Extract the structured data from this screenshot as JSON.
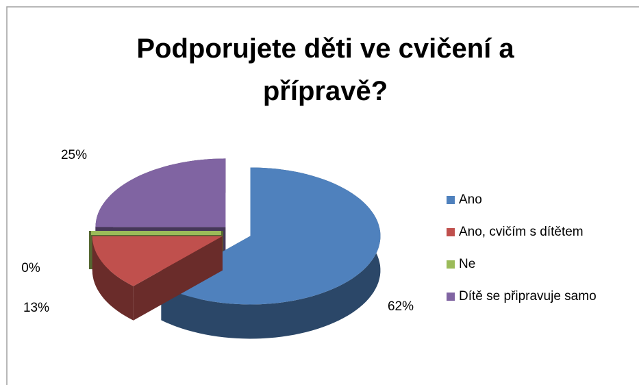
{
  "chart_data": {
    "type": "pie",
    "title": "Podporujete děti ve cvičení a přípravě?",
    "categories": [
      "Ano",
      "Ano, cvičím s dítětem",
      "Ne",
      "Dítě se připravuje samo"
    ],
    "values": [
      62,
      13,
      0,
      25
    ],
    "value_labels": [
      "62%",
      "13%",
      "0%",
      "25%"
    ],
    "colors": [
      "#4f81bd",
      "#c0504d",
      "#9bbb59",
      "#8064a2"
    ],
    "legend": "right"
  }
}
